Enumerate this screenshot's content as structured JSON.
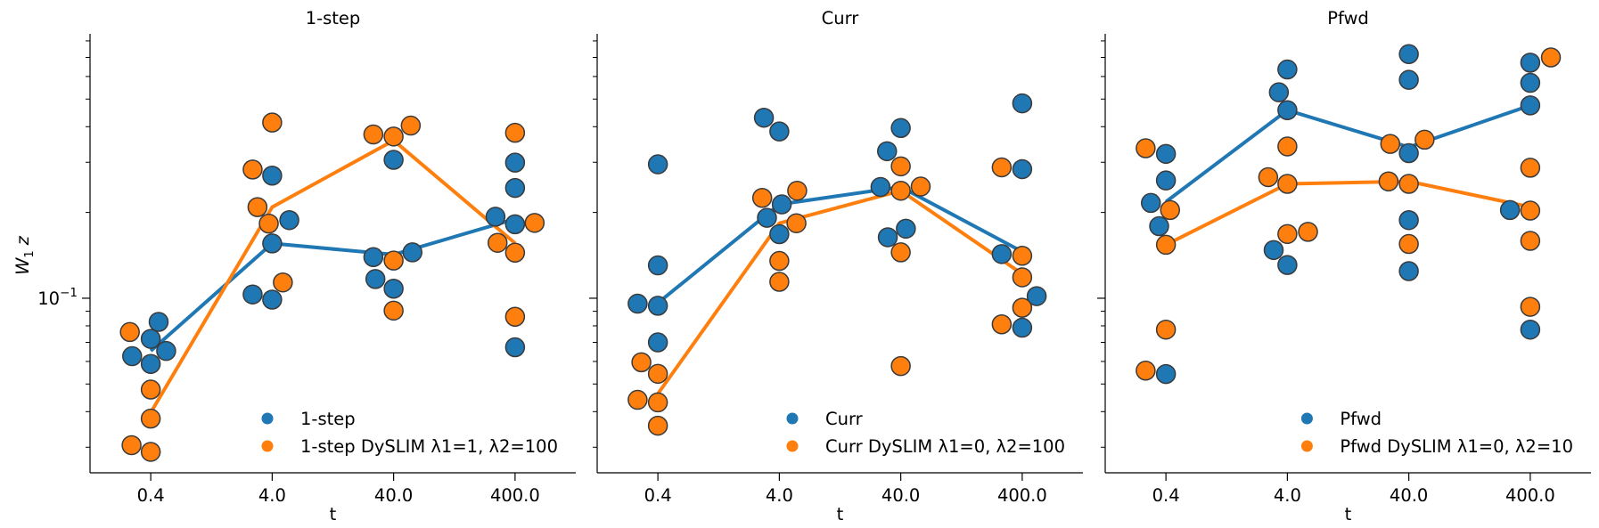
{
  "chart_data": {
    "type": "scatter",
    "yscale": "log",
    "ylim": [
      0.0244,
      0.847
    ],
    "xlabel": "t",
    "ylabel": {
      "base": "W",
      "sub": "1",
      "tail": "z"
    },
    "categories": [
      "0.4",
      "4.0",
      "40.0",
      "400.0"
    ],
    "yticks_major": [
      {
        "value": 0.1,
        "base": "10",
        "exp": "−1"
      }
    ],
    "yticks_minor": [
      0.03,
      0.04,
      0.05,
      0.06,
      0.07,
      0.08,
      0.09,
      0.2,
      0.3,
      0.4,
      0.5,
      0.6,
      0.7,
      0.8
    ],
    "legend_placement": "lower-right",
    "grid": false,
    "panels": [
      {
        "title": "1-step",
        "series": [
          {
            "name": "1-step",
            "color": "#1f77b4",
            "line": [
              0.0653,
              0.1557,
              0.1423,
              0.1897
            ],
            "points": [
              [
                [
                  0.0826,
                  0.065
                ],
                [
                  0.072,
                  0
                ],
                [
                  0.0626,
                  -0.153
                ],
                [
                  0.0588,
                  0
                ],
                [
                  0.0653,
                  0.127
                ]
              ],
              [
                [
                  0.2693,
                  0
                ],
                [
                  0.188,
                  0.141
                ],
                [
                  0.1557,
                  0
                ],
                [
                  0.1031,
                  -0.161
                ],
                [
                  0.0989,
                  0
                ]
              ],
              [
                [
                  0.306,
                  0
                ],
                [
                  0.1394,
                  -0.167
                ],
                [
                  0.1449,
                  0.155
                ],
                [
                  0.1168,
                  -0.15
                ],
                [
                  0.108,
                  0
                ]
              ],
              [
                [
                  0.2992,
                  0
                ],
                [
                  0.2438,
                  0
                ],
                [
                  0.1932,
                  -0.161
                ],
                [
                  0.1818,
                  0
                ],
                [
                  0.0673,
                  0
                ]
              ]
            ]
          },
          {
            "name": "1-step DySLIM λ1=1, λ2=100",
            "color": "#ff7f0e",
            "line": [
              0.0397,
              0.2088,
              0.358,
              0.156
            ],
            "points": [
              [
                [
                  0.0761,
                  -0.172
                ],
                [
                  0.0478,
                  0
                ],
                [
                  0.0378,
                  0
                ],
                [
                  0.0305,
                  -0.158
                ],
                [
                  0.0289,
                  0
                ]
              ],
              [
                [
                  0.4136,
                  0
                ],
                [
                  0.283,
                  -0.161
                ],
                [
                  0.2088,
                  -0.121
                ],
                [
                  0.1828,
                  -0.028
                ],
                [
                  0.1136,
                  0.088
                ]
              ],
              [
                [
                  0.3755,
                  -0.167
                ],
                [
                  0.3694,
                  0
                ],
                [
                  0.4035,
                  0.141
                ],
                [
                  0.1356,
                  0
                ],
                [
                  0.0905,
                  0
                ]
              ],
              [
                [
                  0.3807,
                  0
                ],
                [
                  0.1838,
                  0.161
                ],
                [
                  0.1565,
                  -0.144
                ],
                [
                  0.1445,
                  0
                ],
                [
                  0.0861,
                  0
                ]
              ]
            ]
          }
        ]
      },
      {
        "title": "Curr",
        "series": [
          {
            "name": "Curr",
            "color": "#1f77b4",
            "line": [
              0.0962,
              0.2135,
              0.2458,
              0.1457
            ],
            "points": [
              [
                [
                  0.2951,
                  0
                ],
                [
                  0.1304,
                  0
                ],
                [
                  0.0957,
                  -0.167
                ],
                [
                  0.0941,
                  0
                ],
                [
                  0.07,
                  0
                ]
              ],
              [
                [
                  0.43,
                  -0.127
                ],
                [
                  0.3849,
                  0
                ],
                [
                  0.2135,
                  0.02
                ],
                [
                  0.1916,
                  -0.102
                ],
                [
                  0.1678,
                  0
                ]
              ],
              [
                [
                  0.3957,
                  0
                ],
                [
                  0.328,
                  -0.113
                ],
                [
                  0.2458,
                  -0.167
                ],
                [
                  0.1637,
                  -0.107
                ],
                [
                  0.1754,
                  0.042
                ]
              ],
              [
                [
                  0.483,
                  0
                ],
                [
                  0.2838,
                  0
                ],
                [
                  0.1429,
                  -0.169
                ],
                [
                  0.1017,
                  0.119
                ],
                [
                  0.0788,
                  0
                ]
              ]
            ]
          },
          {
            "name": "Curr DySLIM λ1=0, λ2=100",
            "color": "#ff7f0e",
            "line": [
              0.0462,
              0.1833,
              0.2384,
              0.1217
            ],
            "points": [
              [
                [
                  0.0596,
                  -0.136
                ],
                [
                  0.0543,
                  0
                ],
                [
                  0.044,
                  -0.167
                ],
                [
                  0.0431,
                  0
                ],
                [
                  0.0357,
                  0
                ]
              ],
              [
                [
                  0.225,
                  -0.141
                ],
                [
                  0.2384,
                  0.147
                ],
                [
                  0.1833,
                  0.141
                ],
                [
                  0.1352,
                  0
                ],
                [
                  0.1142,
                  0
                ]
              ],
              [
                [
                  0.2903,
                  0
                ],
                [
                  0.2384,
                  0
                ],
                [
                  0.2465,
                  0.164
                ],
                [
                  0.1449,
                  0
                ],
                [
                  0.0578,
                  0
                ]
              ],
              [
                [
                  0.2879,
                  -0.169
                ],
                [
                  0.1409,
                  0
                ],
                [
                  0.1184,
                  0
                ],
                [
                  0.0926,
                  0
                ],
                [
                  0.081,
                  -0.169
                ]
              ]
            ]
          }
        ]
      },
      {
        "title": "Pfwd",
        "series": [
          {
            "name": "Pfwd",
            "color": "#1f77b4",
            "line": [
              0.218,
              0.457,
              0.339,
              0.475
            ],
            "points": [
              [
                [
                  0.321,
                  0
                ],
                [
                  0.259,
                  0
                ],
                [
                  0.216,
                  -0.124
                ],
                [
                  0.179,
                  -0.056
                ],
                [
                  0.0542,
                  0
                ]
              ],
              [
                [
                  0.635,
                  0
                ],
                [
                  0.528,
                  -0.07
                ],
                [
                  0.457,
                  0
                ],
                [
                  0.1476,
                  -0.113
                ],
                [
                  0.1308,
                  0
                ]
              ],
              [
                [
                  0.719,
                  0
                ],
                [
                  0.584,
                  0
                ],
                [
                  0.323,
                  0
                ],
                [
                  0.188,
                  0
                ],
                [
                  0.1245,
                  0
                ]
              ],
              [
                [
                  0.671,
                  0
                ],
                [
                  0.57,
                  0
                ],
                [
                  0.475,
                  0
                ],
                [
                  0.0776,
                  0
                ],
                [
                  0.204,
                  -0.167
                ]
              ]
            ]
          },
          {
            "name": "Pfwd DySLIM λ1=0, λ2=10",
            "color": "#ff7f0e",
            "line": [
              0.154,
              0.252,
              0.257,
              0.209
            ],
            "points": [
              [
                [
                  0.336,
                  -0.167
                ],
                [
                  0.204,
                  0.034
                ],
                [
                  0.154,
                  0
                ],
                [
                  0.0776,
                  0
                ],
                [
                  0.0557,
                  -0.167
                ]
              ],
              [
                [
                  0.341,
                  0
                ],
                [
                  0.266,
                  -0.158
                ],
                [
                  0.252,
                  0
                ],
                [
                  0.168,
                  0
                ],
                [
                  0.171,
                  0.17
                ]
              ],
              [
                [
                  0.348,
                  -0.153
                ],
                [
                  0.36,
                  0.13
                ],
                [
                  0.257,
                  -0.167
                ],
                [
                  0.252,
                  0
                ],
                [
                  0.155,
                  0
                ]
              ],
              [
                [
                  0.7,
                  0.17
                ],
                [
                  0.287,
                  0
                ],
                [
                  0.203,
                  0
                ],
                [
                  0.159,
                  0
                ],
                [
                  0.0933,
                  0
                ]
              ]
            ]
          }
        ]
      }
    ]
  }
}
